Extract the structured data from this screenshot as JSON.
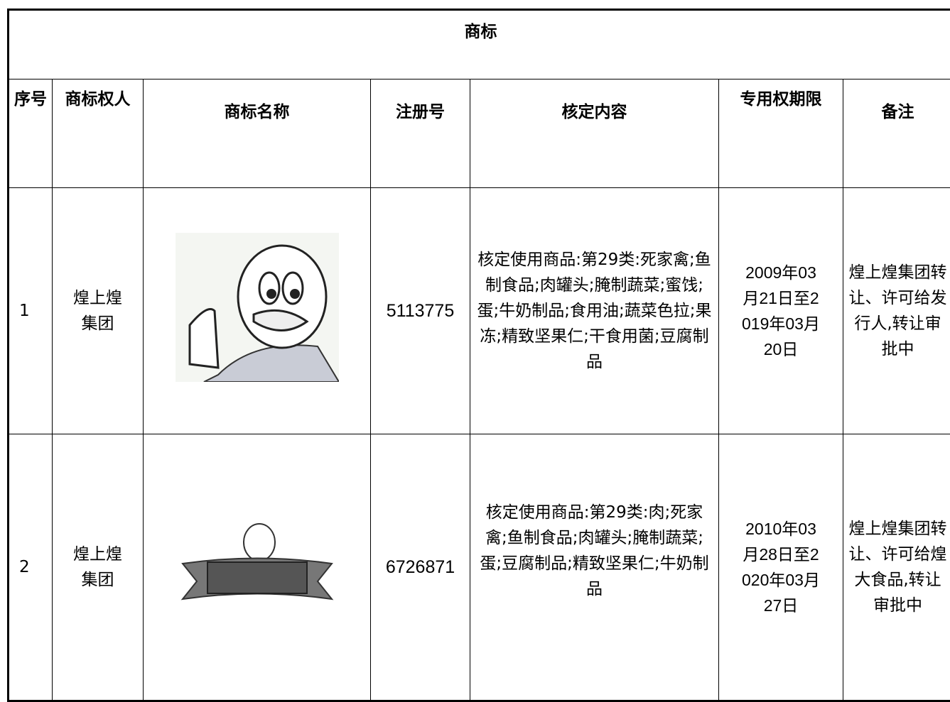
{
  "header": {
    "title": "商标"
  },
  "table": {
    "columns": [
      "序号",
      "商标权人",
      "商标名称",
      "注册号",
      "核定内容",
      "专用权期限",
      "备注"
    ],
    "rows": [
      {
        "index": "1",
        "owner": "煌上煌集团",
        "reg_no": "5113775",
        "content": "核定使用商品:第29类:死家禽;鱼制食品;肉罐头;腌制蔬菜;蜜饯;蛋;牛奶制品;食用油;蔬菜色拉;果冻;精致坚果仁;干食用菌;豆腐制品",
        "term": "2009年03月21日至2019年03月20日",
        "note": "煌上煌集团转让、许可给发行人,转让审批中"
      },
      {
        "index": "2",
        "owner": "煌上煌集团",
        "reg_no": "6726871",
        "content": "核定使用商品:第29类:肉;死家禽;鱼制食品;肉罐头;腌制蔬菜;蛋;豆腐制品;精致坚果仁;牛奶制品",
        "term": "2010年03月28日至2020年03月27日",
        "note": "煌上煌集团转让、许可给煌大食品,转让审批中"
      }
    ]
  }
}
